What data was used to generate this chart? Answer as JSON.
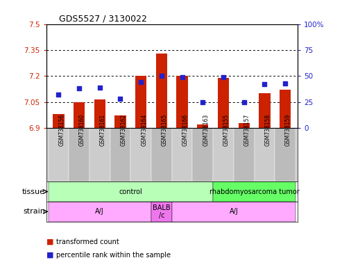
{
  "title": "GDS5527 / 3130022",
  "samples": [
    "GSM738156",
    "GSM738160",
    "GSM738161",
    "GSM738162",
    "GSM738164",
    "GSM738165",
    "GSM738166",
    "GSM738163",
    "GSM738155",
    "GSM738157",
    "GSM738158",
    "GSM738159"
  ],
  "bar_values": [
    6.98,
    7.05,
    7.065,
    6.975,
    7.2,
    7.33,
    7.2,
    6.92,
    7.19,
    6.93,
    7.1,
    7.12
  ],
  "dot_values": [
    32,
    38,
    39,
    28,
    44,
    50,
    49,
    25,
    49,
    25,
    42,
    43
  ],
  "bar_bottom": 6.9,
  "ylim_left": [
    6.9,
    7.5
  ],
  "ylim_right": [
    0,
    100
  ],
  "yticks_left": [
    6.9,
    7.05,
    7.2,
    7.35,
    7.5
  ],
  "yticks_right": [
    0,
    25,
    50,
    75,
    100
  ],
  "hlines": [
    7.05,
    7.2,
    7.35
  ],
  "bar_color": "#cc2200",
  "dot_color": "#2222cc",
  "tissue_groups": [
    {
      "label": "control",
      "start": 0,
      "end": 8,
      "color": "#b8ffb8"
    },
    {
      "label": "rhabdomyosarcoma tumor",
      "start": 8,
      "end": 12,
      "color": "#66ff66"
    }
  ],
  "strain_groups": [
    {
      "label": "A/J",
      "start": 0,
      "end": 5,
      "color": "#ffaaff"
    },
    {
      "label": "BALB\n/c",
      "start": 5,
      "end": 6,
      "color": "#ee77ee"
    },
    {
      "label": "A/J",
      "start": 6,
      "end": 12,
      "color": "#ffaaff"
    }
  ],
  "legend_items": [
    {
      "label": "transformed count",
      "color": "#cc2200"
    },
    {
      "label": "percentile rank within the sample",
      "color": "#2222cc"
    }
  ],
  "left_axis_color": "#cc2200",
  "right_axis_color": "#2222cc",
  "label_bg_color": "#cccccc",
  "label_bg_color2": "#bbbbbb"
}
